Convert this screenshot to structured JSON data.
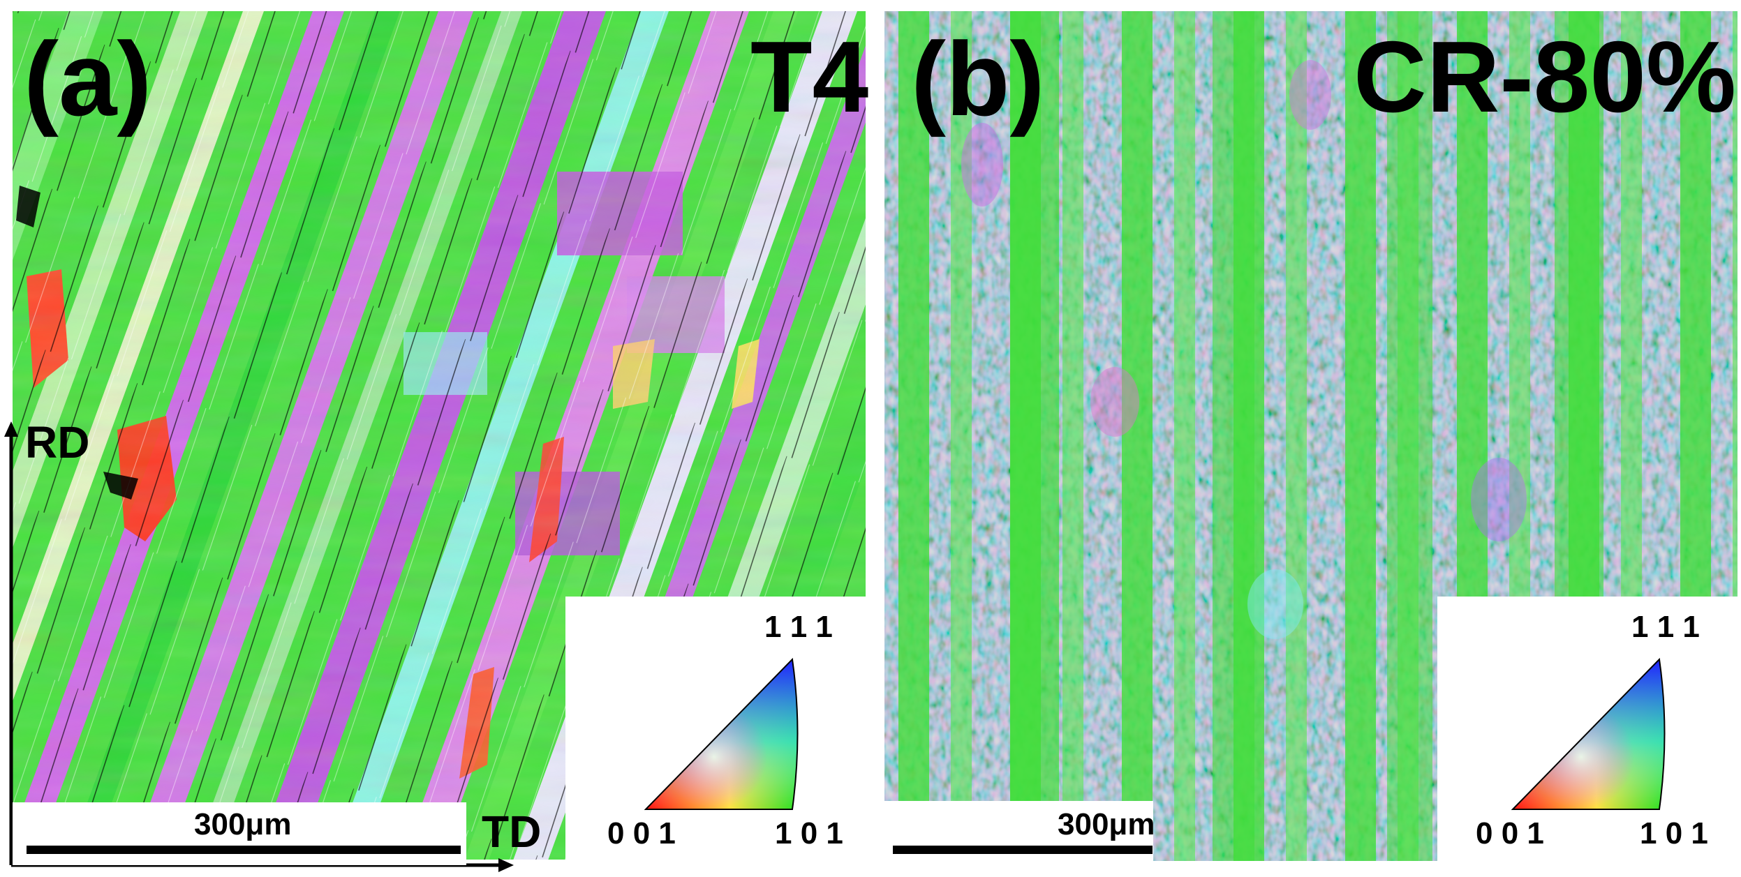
{
  "panels": [
    {
      "panel_label": "(a)",
      "condition": "T4",
      "scalebar": "300μm",
      "axes": {
        "vertical": "RD",
        "horizontal": "TD"
      },
      "legend": {
        "top": "1 1 1",
        "left": "0 0 1",
        "right": "1 0 1"
      }
    },
    {
      "panel_label": "(b)",
      "condition": "CR-80%",
      "scalebar": "300μm",
      "legend": {
        "top": "1 1 1",
        "left": "0 0 1",
        "right": "1 0 1"
      }
    }
  ],
  "colors": {
    "green_101": "#3ee03a",
    "red_001": "#ff2a1a",
    "blue_111": "#2a3cf0",
    "magenta": "#d35be8",
    "cyan": "#5fe8d0"
  }
}
